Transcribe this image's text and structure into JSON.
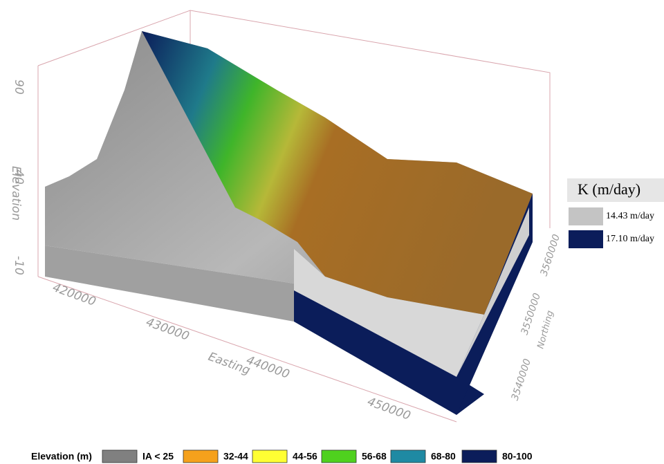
{
  "k_legend": {
    "title": "K (m/day)",
    "items": [
      {
        "label": "14.43 m/day",
        "color": "#c4c4c4"
      },
      {
        "label": "17.10 m/day",
        "color": "#0b1d5a"
      }
    ]
  },
  "elevation_axis": {
    "label": "Elevation",
    "ticks": [
      90,
      40,
      -10
    ]
  },
  "easting_axis": {
    "label": "Easting",
    "ticks": [
      420000,
      430000,
      440000,
      450000
    ]
  },
  "northing_axis": {
    "label": "Northing",
    "ticks": [
      3560000,
      3550000,
      3540000
    ]
  },
  "elevation_legend": {
    "title": "Elevation (m)",
    "items": [
      {
        "label": "IA < 25",
        "color": "#808080"
      },
      {
        "label": "32-44",
        "color": "#f5a11c"
      },
      {
        "label": "44-56",
        "color": "#ffff33"
      },
      {
        "label": "56-68",
        "color": "#4fd11e"
      },
      {
        "label": "68-80",
        "color": "#1f8aa3"
      },
      {
        "label": "80-100",
        "color": "#0b1d5a"
      }
    ]
  }
}
